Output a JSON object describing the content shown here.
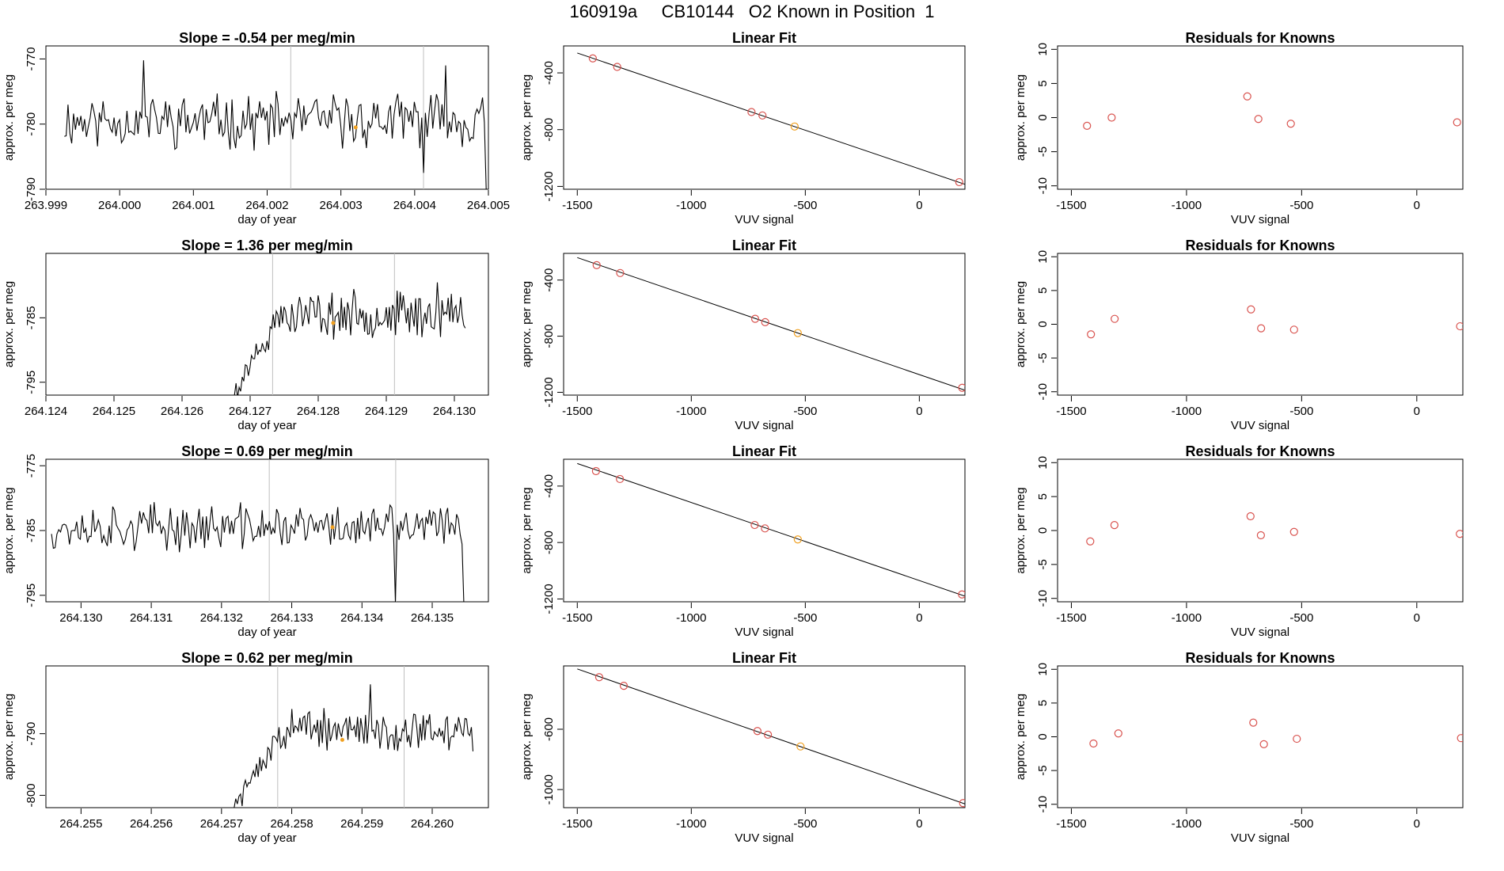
{
  "figure": {
    "title": "160919a     CB10144   O2 Known in Position  1"
  },
  "colors": {
    "line": "#000000",
    "grid": "#bfbfbf",
    "known_point": "#d9534f",
    "highlight_point": "#f0a020"
  },
  "chart_data": [
    {
      "type": "line",
      "row": 1,
      "title": "Slope =  -0.54  per meg/min",
      "xlabel": "day of year",
      "ylabel": "approx. per meg",
      "xlim": [
        263.999,
        264.005
      ],
      "ylim": [
        -790,
        -768
      ],
      "xticks": [
        263.999,
        264.0,
        264.001,
        264.002,
        264.003,
        264.004,
        264.005
      ],
      "xtick_labels": [
        "263.999",
        "264.000",
        "264.001",
        "264.002",
        "264.003",
        "264.004",
        "264.005"
      ],
      "yticks": [
        -790,
        -780,
        -770
      ],
      "ytick_labels": [
        "-790",
        "-780",
        "-770"
      ],
      "vlines": [
        264.00232,
        264.00412
      ],
      "marker": {
        "x": 264.0032,
        "y": -780.5
      },
      "series": {
        "x_start": 263.99925,
        "x_end": 264.00497,
        "points": 230,
        "mean": -779.5,
        "amplitude": 3.2,
        "spikes": [
          [
            264.00032,
            -770.2
          ],
          [
            264.00413,
            -787.5
          ],
          [
            264.00442,
            -771.0
          ],
          [
            264.00498,
            -790
          ]
        ],
        "seed": 11
      }
    },
    {
      "type": "scatter",
      "row": 1,
      "title": "Linear Fit",
      "xlabel": "VUV signal",
      "ylabel": "approx. per meg",
      "xlim": [
        -1560,
        200
      ],
      "ylim": [
        -1220,
        -210
      ],
      "xticks": [
        -1500,
        -1000,
        -500,
        0
      ],
      "xtick_labels": [
        "-1500",
        "-1000",
        "-500",
        "0"
      ],
      "yticks": [
        -1200,
        -800,
        -400
      ],
      "ytick_labels": [
        "-1200",
        "-800",
        "-400"
      ],
      "fit": {
        "x": [
          -1500,
          200
        ],
        "y": [
          -260,
          -1185
        ]
      },
      "points": [
        {
          "x": -1432,
          "y": -298,
          "color": "known"
        },
        {
          "x": -1325,
          "y": -358,
          "color": "known"
        },
        {
          "x": -736,
          "y": -676,
          "color": "known"
        },
        {
          "x": -688,
          "y": -700,
          "color": "known"
        },
        {
          "x": -547,
          "y": -778,
          "color": "highlight"
        },
        {
          "x": 175,
          "y": -1170,
          "color": "known"
        }
      ]
    },
    {
      "type": "scatter",
      "row": 1,
      "title": "Residuals for Knowns",
      "xlabel": "VUV signal",
      "ylabel": "approx. per meg",
      "xlim": [
        -1560,
        200
      ],
      "ylim": [
        -10.5,
        10.5
      ],
      "xticks": [
        -1500,
        -1000,
        -500,
        0
      ],
      "xtick_labels": [
        "-1500",
        "-1000",
        "-500",
        "0"
      ],
      "yticks": [
        -10,
        -5,
        0,
        5,
        10
      ],
      "ytick_labels": [
        "-10",
        "-5",
        "0",
        "5",
        "10"
      ],
      "points": [
        {
          "x": -1432,
          "y": -1.2,
          "color": "known"
        },
        {
          "x": -1325,
          "y": 0.0,
          "color": "known"
        },
        {
          "x": -736,
          "y": 3.1,
          "color": "known"
        },
        {
          "x": -688,
          "y": -0.2,
          "color": "known"
        },
        {
          "x": -547,
          "y": -0.9,
          "color": "known"
        },
        {
          "x": 175,
          "y": -0.7,
          "color": "known"
        }
      ]
    },
    {
      "type": "line",
      "row": 2,
      "title": "Slope =  1.36  per meg/min",
      "xlabel": "day of year",
      "ylabel": "approx. per meg",
      "xlim": [
        264.124,
        264.1305
      ],
      "ylim": [
        -797,
        -775
      ],
      "xticks": [
        264.124,
        264.125,
        264.126,
        264.127,
        264.128,
        264.129,
        264.13
      ],
      "xtick_labels": [
        "264.124",
        "264.125",
        "264.126",
        "264.127",
        "264.128",
        "264.129",
        "264.130"
      ],
      "yticks": [
        -795,
        -785
      ],
      "ytick_labels": [
        "-795",
        "-785"
      ],
      "vlines": [
        264.12733,
        264.12912
      ],
      "marker": {
        "x": 264.12822,
        "y": -785.8
      },
      "series": {
        "x_start": 264.12677,
        "x_end": 264.13016,
        "points": 150,
        "mean": -784.5,
        "amplitude": 2.8,
        "ramp": {
          "x_end": 264.12745,
          "y_start": -797
        },
        "spikes": [
          [
            264.12677,
            -797
          ],
          [
            264.12975,
            -779.5
          ]
        ],
        "seed": 23
      }
    },
    {
      "type": "scatter",
      "row": 2,
      "title": "Linear Fit",
      "xlabel": "VUV signal",
      "ylabel": "approx. per meg",
      "xlim": [
        -1560,
        200
      ],
      "ylim": [
        -1220,
        -210
      ],
      "xticks": [
        -1500,
        -1000,
        -500,
        0
      ],
      "xtick_labels": [
        "-1500",
        "-1000",
        "-500",
        "0"
      ],
      "yticks": [
        -1200,
        -800,
        -400
      ],
      "ytick_labels": [
        "-1200",
        "-800",
        "-400"
      ],
      "fit": {
        "x": [
          -1500,
          200
        ],
        "y": [
          -240,
          -1185
        ]
      },
      "points": [
        {
          "x": -1415,
          "y": -294,
          "color": "known"
        },
        {
          "x": -1312,
          "y": -350,
          "color": "known"
        },
        {
          "x": -720,
          "y": -676,
          "color": "known"
        },
        {
          "x": -676,
          "y": -700,
          "color": "known"
        },
        {
          "x": -533,
          "y": -778,
          "color": "highlight"
        },
        {
          "x": 188,
          "y": -1168,
          "color": "known"
        }
      ]
    },
    {
      "type": "scatter",
      "row": 2,
      "title": "Residuals for Knowns",
      "xlabel": "VUV signal",
      "ylabel": "approx. per meg",
      "xlim": [
        -1560,
        200
      ],
      "ylim": [
        -10.5,
        10.5
      ],
      "xticks": [
        -1500,
        -1000,
        -500,
        0
      ],
      "xtick_labels": [
        "-1500",
        "-1000",
        "-500",
        "0"
      ],
      "yticks": [
        -10,
        -5,
        0,
        5,
        10
      ],
      "ytick_labels": [
        "-10",
        "-5",
        "0",
        "5",
        "10"
      ],
      "points": [
        {
          "x": -1415,
          "y": -1.5,
          "color": "known"
        },
        {
          "x": -1312,
          "y": 0.8,
          "color": "known"
        },
        {
          "x": -720,
          "y": 2.2,
          "color": "known"
        },
        {
          "x": -676,
          "y": -0.6,
          "color": "known"
        },
        {
          "x": -533,
          "y": -0.8,
          "color": "known"
        },
        {
          "x": 188,
          "y": -0.3,
          "color": "known"
        }
      ]
    },
    {
      "type": "line",
      "row": 3,
      "title": "Slope =  0.69  per meg/min",
      "xlabel": "day of year",
      "ylabel": "approx. per meg",
      "xlim": [
        264.1295,
        264.1358
      ],
      "ylim": [
        -796,
        -774
      ],
      "xticks": [
        264.13,
        264.131,
        264.132,
        264.133,
        264.134,
        264.135
      ],
      "xtick_labels": [
        "264.130",
        "264.131",
        "264.132",
        "264.133",
        "264.134",
        "264.135"
      ],
      "yticks": [
        -795,
        -785,
        -775
      ],
      "ytick_labels": [
        "-795",
        "-785",
        "-775"
      ],
      "vlines": [
        264.13268,
        264.13448
      ],
      "marker": {
        "x": 264.13358,
        "y": -784.5
      },
      "series": {
        "x_start": 264.12958,
        "x_end": 264.13545,
        "points": 230,
        "mean": -784.5,
        "amplitude": 2.8,
        "spikes": [
          [
            264.13448,
            -796
          ],
          [
            264.13545,
            -796
          ]
        ],
        "seed": 37
      }
    },
    {
      "type": "scatter",
      "row": 3,
      "title": "Linear Fit",
      "xlabel": "VUV signal",
      "ylabel": "approx. per meg",
      "xlim": [
        -1560,
        200
      ],
      "ylim": [
        -1220,
        -210
      ],
      "xticks": [
        -1500,
        -1000,
        -500,
        0
      ],
      "xtick_labels": [
        "-1500",
        "-1000",
        "-500",
        "0"
      ],
      "yticks": [
        -1200,
        -800,
        -400
      ],
      "ytick_labels": [
        "-1200",
        "-800",
        "-400"
      ],
      "fit": {
        "x": [
          -1500,
          200
        ],
        "y": [
          -240,
          -1180
        ]
      },
      "points": [
        {
          "x": -1418,
          "y": -294,
          "color": "known"
        },
        {
          "x": -1313,
          "y": -350,
          "color": "known"
        },
        {
          "x": -722,
          "y": -676,
          "color": "known"
        },
        {
          "x": -677,
          "y": -700,
          "color": "known"
        },
        {
          "x": -533,
          "y": -778,
          "color": "highlight"
        },
        {
          "x": 187,
          "y": -1168,
          "color": "known"
        }
      ]
    },
    {
      "type": "scatter",
      "row": 3,
      "title": "Residuals for Knowns",
      "xlabel": "VUV signal",
      "ylabel": "approx. per meg",
      "xlim": [
        -1560,
        200
      ],
      "ylim": [
        -10.5,
        10.5
      ],
      "xticks": [
        -1500,
        -1000,
        -500,
        0
      ],
      "xtick_labels": [
        "-1500",
        "-1000",
        "-500",
        "0"
      ],
      "yticks": [
        -10,
        -5,
        0,
        5,
        10
      ],
      "ytick_labels": [
        "-10",
        "-5",
        "0",
        "5",
        "10"
      ],
      "points": [
        {
          "x": -1418,
          "y": -1.6,
          "color": "known"
        },
        {
          "x": -1313,
          "y": 0.8,
          "color": "known"
        },
        {
          "x": -722,
          "y": 2.1,
          "color": "known"
        },
        {
          "x": -677,
          "y": -0.7,
          "color": "known"
        },
        {
          "x": -533,
          "y": -0.2,
          "color": "known"
        },
        {
          "x": 187,
          "y": -0.5,
          "color": "known"
        }
      ]
    },
    {
      "type": "line",
      "row": 4,
      "title": "Slope =  0.62  per meg/min",
      "xlabel": "day of year",
      "ylabel": "approx. per meg",
      "xlim": [
        264.2545,
        264.2608
      ],
      "ylim": [
        -802,
        -779
      ],
      "xticks": [
        264.255,
        264.256,
        264.257,
        264.258,
        264.259,
        264.26
      ],
      "xtick_labels": [
        "264.255",
        "264.256",
        "264.257",
        "264.258",
        "264.259",
        "264.260"
      ],
      "yticks": [
        -800,
        -790
      ],
      "ytick_labels": [
        "-800",
        "-790"
      ],
      "vlines": [
        264.2578,
        264.2596
      ],
      "marker": {
        "x": 264.25872,
        "y": -791
      },
      "series": {
        "x_start": 264.25718,
        "x_end": 264.26058,
        "points": 150,
        "mean": -789.5,
        "amplitude": 2.6,
        "ramp": {
          "x_end": 264.2579,
          "y_start": -802
        },
        "spikes": [
          [
            264.25718,
            -802
          ],
          [
            264.25912,
            -782
          ]
        ],
        "seed": 51
      }
    },
    {
      "type": "scatter",
      "row": 4,
      "title": "Linear Fit",
      "xlabel": "VUV signal",
      "ylabel": "approx. per meg",
      "xlim": [
        -1560,
        200
      ],
      "ylim": [
        -1120,
        -180
      ],
      "xticks": [
        -1500,
        -1000,
        -500,
        0
      ],
      "xtick_labels": [
        "-1500",
        "-1000",
        "-500",
        "0"
      ],
      "yticks": [
        -1000,
        -600
      ],
      "ytick_labels": [
        "-1000",
        "-600"
      ],
      "fit": {
        "x": [
          -1500,
          200
        ],
        "y": [
          -200,
          -1095
        ]
      },
      "points": [
        {
          "x": -1404,
          "y": -255,
          "color": "known"
        },
        {
          "x": -1296,
          "y": -312,
          "color": "known"
        },
        {
          "x": -710,
          "y": -612,
          "color": "known"
        },
        {
          "x": -664,
          "y": -636,
          "color": "known"
        },
        {
          "x": -521,
          "y": -714,
          "color": "highlight"
        },
        {
          "x": 192,
          "y": -1090,
          "color": "known"
        }
      ]
    },
    {
      "type": "scatter",
      "row": 4,
      "title": "Residuals for Knowns",
      "xlabel": "VUV signal",
      "ylabel": "approx. per meg",
      "xlim": [
        -1560,
        200
      ],
      "ylim": [
        -10.5,
        10.5
      ],
      "xticks": [
        -1500,
        -1000,
        -500,
        0
      ],
      "xtick_labels": [
        "-1500",
        "-1000",
        "-500",
        "0"
      ],
      "yticks": [
        -10,
        -5,
        0,
        5,
        10
      ],
      "ytick_labels": [
        "-10",
        "-5",
        "0",
        "5",
        "10"
      ],
      "points": [
        {
          "x": -1404,
          "y": -1.0,
          "color": "known"
        },
        {
          "x": -1296,
          "y": 0.5,
          "color": "known"
        },
        {
          "x": -710,
          "y": 2.1,
          "color": "known"
        },
        {
          "x": -664,
          "y": -1.1,
          "color": "known"
        },
        {
          "x": -521,
          "y": -0.3,
          "color": "known"
        },
        {
          "x": 192,
          "y": -0.2,
          "color": "known"
        }
      ]
    }
  ]
}
